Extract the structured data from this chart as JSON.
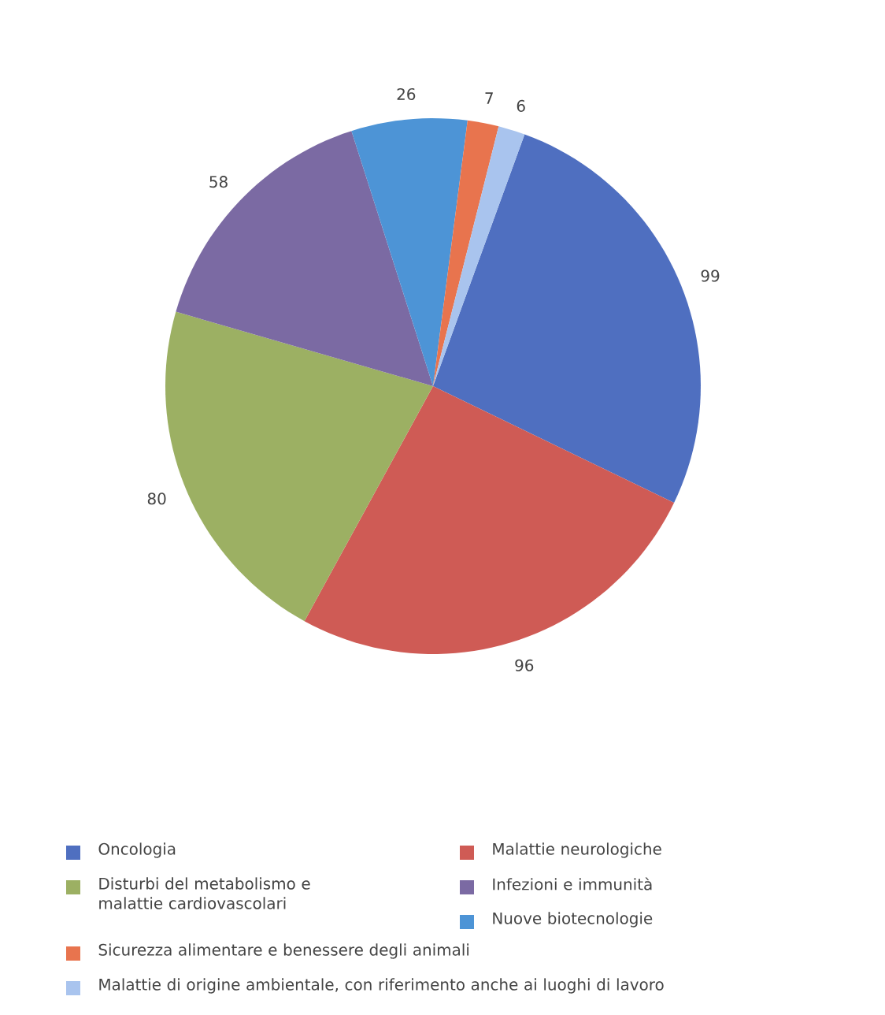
{
  "chart_data": {
    "type": "pie",
    "categories": [
      "Oncologia",
      "Malattie neurologiche",
      "Disturbi del metabolismo e malattie cardiovascolari",
      "Infezioni e immunità",
      "Nuove biotecnologie",
      "Sicurezza alimentare e benessere degli animali",
      "Malattie di origine ambientale, con riferimento anche ai luoghi di lavoro"
    ],
    "values": [
      99,
      96,
      80,
      58,
      26,
      7,
      6
    ],
    "colors": [
      "#4f6fc0",
      "#cf5b55",
      "#9cb063",
      "#7b6aa3",
      "#4d94d6",
      "#e8744e",
      "#a9c4ee"
    ],
    "data_labels": true,
    "legend": "bottom"
  }
}
